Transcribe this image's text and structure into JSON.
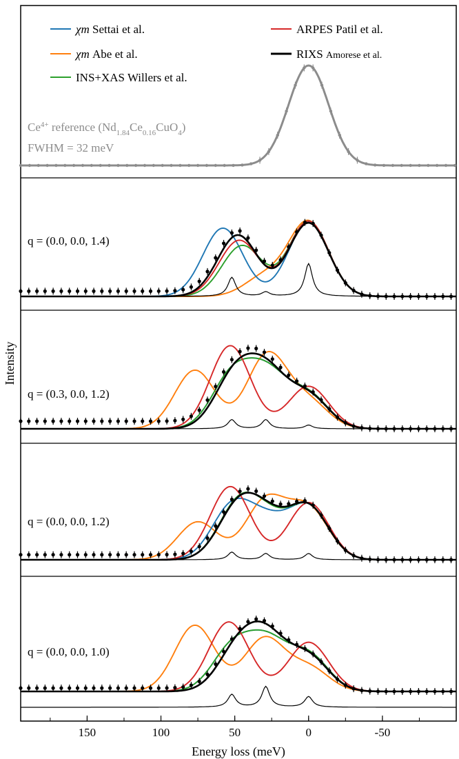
{
  "chart_data": {
    "type": "line",
    "title": "",
    "xlabel": "Energy loss (meV)",
    "ylabel": "Intensity",
    "xlim": [
      195,
      -100
    ],
    "x_reversed": true,
    "xticks": [
      150,
      100,
      50,
      0,
      -50
    ],
    "xtick_labels": [
      "150",
      "100",
      "50",
      "0",
      "-50"
    ],
    "legend": {
      "placement": "top",
      "entries": [
        {
          "key": "settai",
          "method": "χm",
          "source": "Settai et al.",
          "color": "#1f77b4"
        },
        {
          "key": "abe",
          "method": "χm",
          "source": "Abe et al.",
          "color": "#ff7f0e"
        },
        {
          "key": "willers",
          "method": "INS+XAS",
          "source": "Willers et al.",
          "color": "#2ca02c"
        },
        {
          "key": "patil",
          "method": "ARPES",
          "source": "Patil et al.",
          "color": "#d62728"
        },
        {
          "key": "amorese",
          "method": "RIXS",
          "source": "Amorese et al.",
          "color": "#000000"
        }
      ]
    },
    "reference": {
      "label_prefix": "Ce",
      "label_sup": "4+",
      "label_mid": " reference (Nd",
      "label_sub1": "1.84",
      "label_ce": "Ce",
      "label_sub2": "0.16",
      "label_end": "CuO",
      "label_sub3": "4",
      "label_close": ")",
      "fwhm_label": "FWHM = 32 meV",
      "color": "#8c8c8c",
      "center": 0,
      "fwhm": 32
    },
    "panels": [
      {
        "label": "q = (0.0, 0.0, 1.4)",
        "peak_weights": [
          0.55,
          0.12,
          0.95
        ],
        "baseline": 0.06,
        "curves": {
          "settai": [
            [
              0,
              0.85,
              32
            ],
            [
              58,
              0.78,
              32
            ]
          ],
          "abe": [
            [
              0,
              0.85,
              32
            ],
            [
              30,
              0.22,
              32
            ]
          ],
          "willers": [
            [
              0,
              0.86,
              32
            ],
            [
              45,
              0.58,
              32
            ]
          ],
          "patil": [
            [
              0,
              0.86,
              32
            ],
            [
              47,
              0.64,
              32
            ]
          ],
          "amorese": [
            [
              0,
              0.84,
              32
            ],
            [
              48,
              0.7,
              32
            ]
          ]
        }
      },
      {
        "label": "q = (0.3, 0.0, 1.2)",
        "peak_weights": [
          0.55,
          0.55,
          0.22
        ],
        "baseline": 0.08,
        "curves": {
          "settai": [
            [
              0,
              0.35,
              32
            ],
            [
              28,
              0.55,
              32
            ],
            [
              52,
              0.55,
              32
            ]
          ],
          "abe": [
            [
              0,
              0.28,
              32
            ],
            [
              28,
              0.78,
              32
            ],
            [
              77,
              0.62,
              32
            ]
          ],
          "willers": [
            [
              0,
              0.35,
              32
            ],
            [
              28,
              0.55,
              32
            ],
            [
              52,
              0.55,
              32
            ]
          ],
          "patil": [
            [
              0,
              0.45,
              32
            ],
            [
              53,
              0.88,
              32
            ]
          ],
          "amorese": [
            [
              0,
              0.34,
              32
            ],
            [
              28,
              0.55,
              32
            ],
            [
              50,
              0.55,
              32
            ]
          ]
        }
      },
      {
        "label": "q = (0.0, 0.0, 1.2)",
        "peak_weights": [
          0.55,
          0.45,
          0.45
        ],
        "baseline": 0.06,
        "curves": {
          "settai": [
            [
              0,
              0.62,
              32
            ],
            [
              28,
              0.4,
              32
            ],
            [
              52,
              0.62,
              32
            ]
          ],
          "abe": [
            [
              0,
              0.6,
              32
            ],
            [
              29,
              0.7,
              32
            ],
            [
              75,
              0.45,
              32
            ]
          ],
          "willers": [
            [
              0,
              0.62,
              32
            ],
            [
              28,
              0.4,
              32
            ],
            [
              48,
              0.62,
              32
            ]
          ],
          "patil": [
            [
              0,
              0.68,
              32
            ],
            [
              53,
              0.87,
              32
            ]
          ],
          "amorese": [
            [
              0,
              0.62,
              32
            ],
            [
              28,
              0.42,
              32
            ],
            [
              48,
              0.6,
              32
            ]
          ]
        }
      },
      {
        "label": "q = (0.0, 0.0, 1.0)",
        "peak_weights": [
          0.42,
          0.68,
          0.35
        ],
        "baseline": 0.04,
        "curves": {
          "settai": [
            [
              0,
              0.42,
              32
            ],
            [
              28,
              0.55,
              32
            ],
            [
              52,
              0.5,
              32
            ]
          ],
          "abe": [
            [
              0,
              0.28,
              32
            ],
            [
              30,
              0.62,
              32
            ],
            [
              77,
              0.78,
              32
            ]
          ],
          "willers": [
            [
              0,
              0.42,
              32
            ],
            [
              28,
              0.55,
              32
            ],
            [
              52,
              0.5,
              32
            ]
          ],
          "patil": [
            [
              0,
              0.58,
              32
            ],
            [
              54,
              0.82,
              32
            ]
          ],
          "amorese": [
            [
              0,
              0.4,
              32
            ],
            [
              28,
              0.58,
              32
            ],
            [
              48,
              0.48,
              32
            ]
          ]
        }
      }
    ],
    "stick_positions": [
      52,
      29,
      0
    ]
  }
}
